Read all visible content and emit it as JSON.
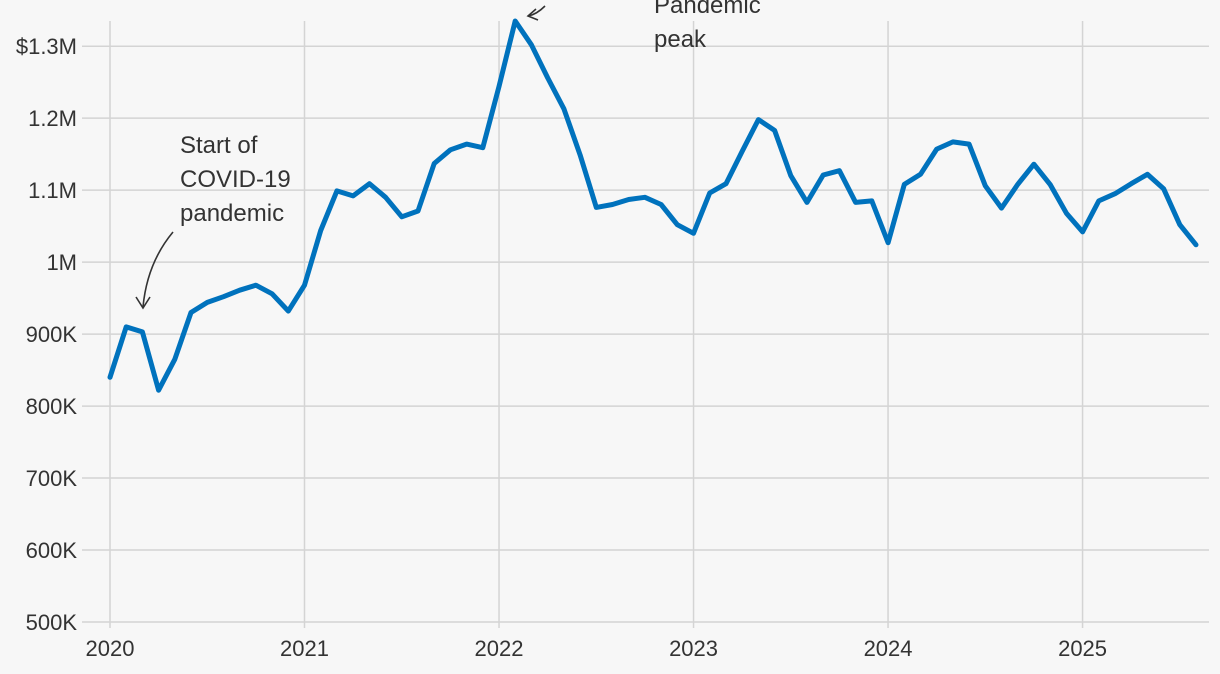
{
  "chart_data": {
    "type": "line",
    "title": "",
    "xlabel": "",
    "ylabel": "",
    "xlim": [
      2020.0,
      2025.65
    ],
    "ylim": [
      500000,
      1335000
    ],
    "grid": true,
    "legend": "none",
    "colors": {
      "line": "#0072bd",
      "grid": "#d4d4d4",
      "background": "#f7f7f7",
      "text": "#333333"
    },
    "x_ticks": [
      {
        "value": 2020,
        "label": "2020"
      },
      {
        "value": 2021,
        "label": "2021"
      },
      {
        "value": 2022,
        "label": "2022"
      },
      {
        "value": 2023,
        "label": "2023"
      },
      {
        "value": 2024,
        "label": "2024"
      },
      {
        "value": 2025,
        "label": "2025"
      }
    ],
    "y_ticks": [
      {
        "value": 500000,
        "label": "500K"
      },
      {
        "value": 600000,
        "label": "600K"
      },
      {
        "value": 700000,
        "label": "700K"
      },
      {
        "value": 800000,
        "label": "800K"
      },
      {
        "value": 900000,
        "label": "900K"
      },
      {
        "value": 1000000,
        "label": "1M"
      },
      {
        "value": 1100000,
        "label": "1.1M"
      },
      {
        "value": 1200000,
        "label": "1.2M"
      },
      {
        "value": 1300000,
        "label": "$1.3M"
      }
    ],
    "series": [
      {
        "x": [
          "2020-01",
          "2020-02",
          "2020-03",
          "2020-04",
          "2020-05",
          "2020-06",
          "2020-07",
          "2020-08",
          "2020-09",
          "2020-10",
          "2020-11",
          "2020-12",
          "2021-01",
          "2021-02",
          "2021-03",
          "2021-04",
          "2021-05",
          "2021-06",
          "2021-07",
          "2021-08",
          "2021-09",
          "2021-10",
          "2021-11",
          "2021-12",
          "2022-01",
          "2022-02",
          "2022-03",
          "2022-04",
          "2022-05",
          "2022-06",
          "2022-07",
          "2022-08",
          "2022-09",
          "2022-10",
          "2022-11",
          "2022-12",
          "2023-01",
          "2023-02",
          "2023-03",
          "2023-04",
          "2023-05",
          "2023-06",
          "2023-07",
          "2023-08",
          "2023-09",
          "2023-10",
          "2023-11",
          "2023-12",
          "2024-01",
          "2024-02",
          "2024-03",
          "2024-04",
          "2024-05",
          "2024-06",
          "2024-07",
          "2024-08",
          "2024-09",
          "2024-10",
          "2024-11",
          "2024-12",
          "2025-01",
          "2025-02",
          "2025-03",
          "2025-04",
          "2025-05",
          "2025-06",
          "2025-07",
          "2025-08",
          "2025-09"
        ],
        "values": [
          840000,
          910000,
          903000,
          822000,
          865000,
          930000,
          944000,
          952000,
          961000,
          968000,
          956000,
          932000,
          968000,
          1044000,
          1099000,
          1092000,
          1109000,
          1090000,
          1063000,
          1071000,
          1137000,
          1156000,
          1164000,
          1159000,
          1244000,
          1335000,
          1302000,
          1256000,
          1213000,
          1149000,
          1076000,
          1080000,
          1087000,
          1090000,
          1080000,
          1052000,
          1040000,
          1096000,
          1109000,
          1154000,
          1198000,
          1183000,
          1120000,
          1083000,
          1121000,
          1127000,
          1083000,
          1085000,
          1027000,
          1108000,
          1122000,
          1157000,
          1167000,
          1164000,
          1106000,
          1075000,
          1108000,
          1136000,
          1108000,
          1068000,
          1042000,
          1085000,
          1095000,
          1109000,
          1122000,
          1102000,
          1052000,
          1024000,
          null
        ]
      }
    ],
    "annotations": [
      {
        "lines": [
          "Start of",
          "COVID-19",
          "pandemic"
        ],
        "target": "2020-03"
      },
      {
        "lines": [
          "Pandemic",
          "peak"
        ],
        "target": "2022-02"
      }
    ]
  }
}
